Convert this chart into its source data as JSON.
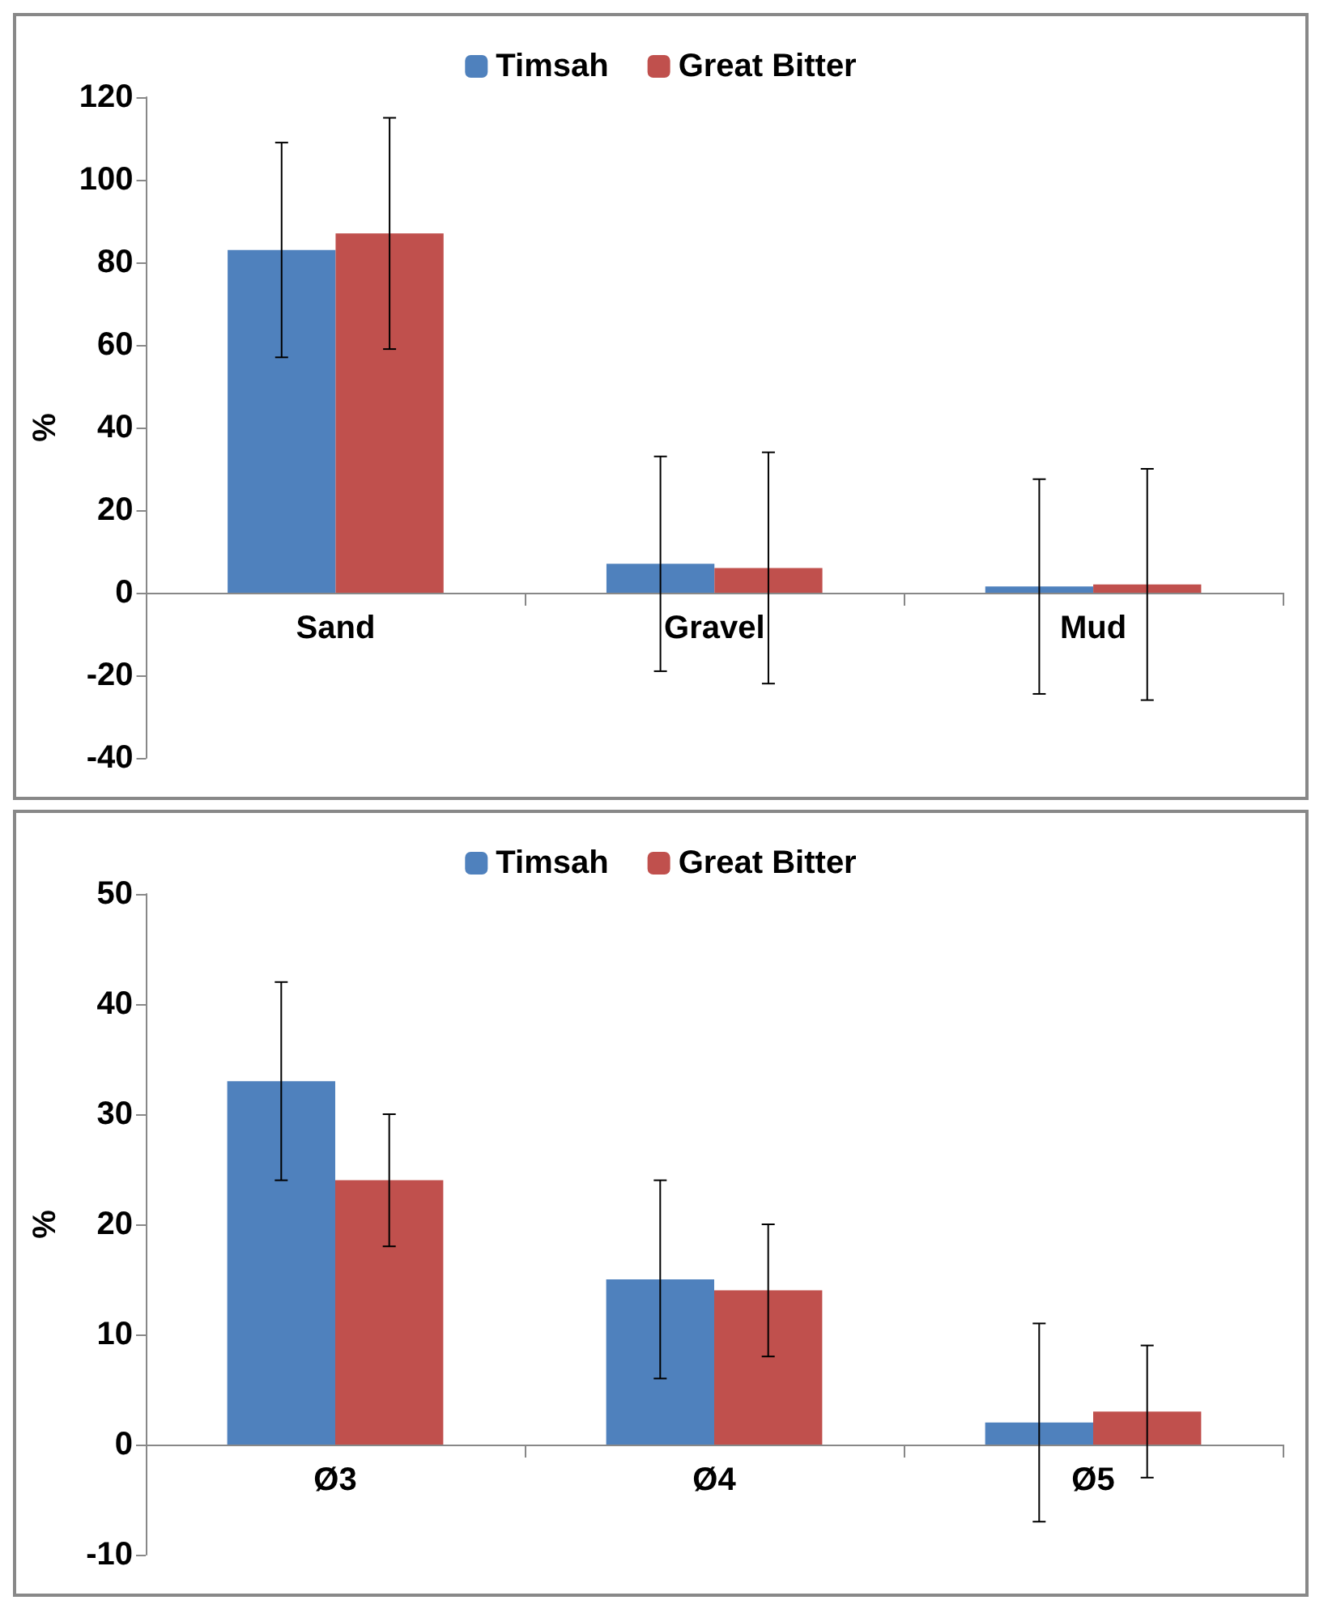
{
  "chart_data": [
    {
      "type": "bar",
      "categories": [
        "Sand",
        "Gravel",
        "Mud"
      ],
      "ylabel": "%",
      "series": [
        {
          "name": "Timsah",
          "color": "#4f81bd",
          "values": [
            83,
            7,
            1.5
          ],
          "errors": [
            26,
            26,
            26
          ]
        },
        {
          "name": "Great Bitter",
          "color": "#c0504d",
          "values": [
            87,
            6,
            2
          ],
          "errors": [
            28,
            28,
            28
          ]
        }
      ],
      "ylim": [
        -40,
        120
      ],
      "yticks": [
        -40,
        -20,
        0,
        20,
        40,
        60,
        80,
        100,
        120
      ],
      "legend": "top"
    },
    {
      "type": "bar",
      "categories": [
        "Ø3",
        "Ø4",
        "Ø5"
      ],
      "ylabel": "%",
      "series": [
        {
          "name": "Timsah",
          "color": "#4f81bd",
          "values": [
            33,
            15,
            2
          ],
          "errors": [
            9,
            9,
            9
          ]
        },
        {
          "name": "Great Bitter",
          "color": "#c0504d",
          "values": [
            24,
            14,
            3
          ],
          "errors": [
            6,
            6,
            6
          ]
        }
      ],
      "ylim": [
        -10,
        50
      ],
      "yticks": [
        -10,
        0,
        10,
        20,
        30,
        40,
        50
      ],
      "legend": "top"
    }
  ]
}
